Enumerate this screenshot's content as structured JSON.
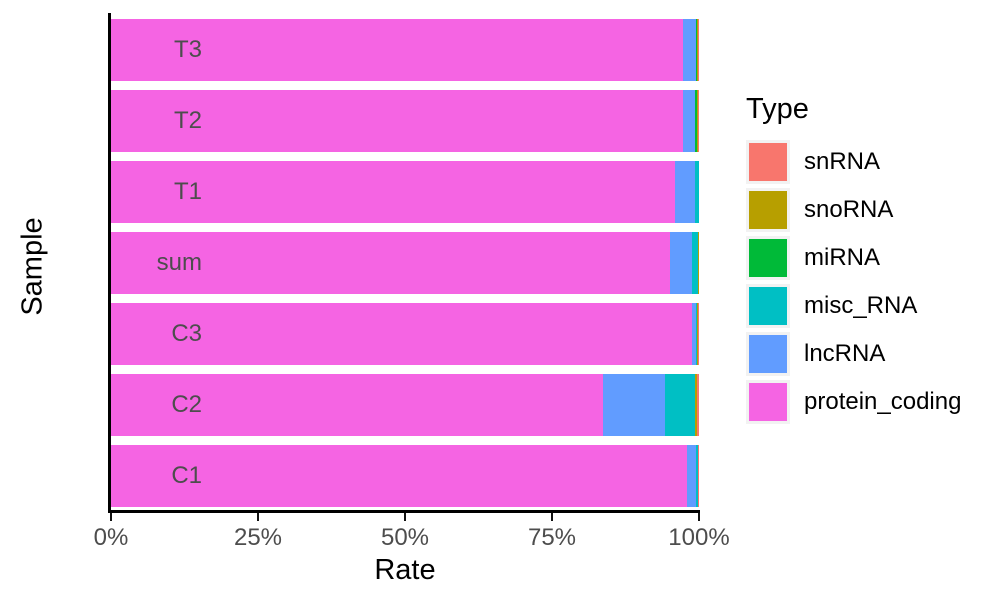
{
  "chart_data": {
    "type": "bar",
    "orientation": "horizontal",
    "stacked": true,
    "title": "",
    "xlabel": "Rate",
    "ylabel": "Sample",
    "x_ticks": [
      {
        "label": "0%",
        "value": 0
      },
      {
        "label": "25%",
        "value": 25
      },
      {
        "label": "50%",
        "value": 50
      },
      {
        "label": "75%",
        "value": 75
      },
      {
        "label": "100%",
        "value": 100
      }
    ],
    "xlim": [
      0,
      100
    ],
    "grid": false,
    "stack_order": [
      "protein_coding",
      "lncRNA",
      "misc_RNA",
      "miRNA",
      "snoRNA",
      "snRNA"
    ],
    "palette": {
      "snRNA": "#F8766D",
      "snoRNA": "#B79F00",
      "miRNA": "#00BA38",
      "misc_RNA": "#00BFC4",
      "lncRNA": "#619CFF",
      "protein_coding": "#F564E3"
    },
    "rows": [
      {
        "label": "T3",
        "segments": {
          "protein_coding": 97.2,
          "lncRNA": 2.3,
          "misc_RNA": 0.0,
          "miRNA": 0.2,
          "snoRNA": 0.2,
          "snRNA": 0.1
        }
      },
      {
        "label": "T2",
        "segments": {
          "protein_coding": 97.3,
          "lncRNA": 2.1,
          "misc_RNA": 0.0,
          "miRNA": 0.3,
          "snoRNA": 0.2,
          "snRNA": 0.1
        }
      },
      {
        "label": "T1",
        "segments": {
          "protein_coding": 95.9,
          "lncRNA": 3.4,
          "misc_RNA": 0.7,
          "miRNA": 0.0,
          "snoRNA": 0.0,
          "snRNA": 0.0
        }
      },
      {
        "label": "sum",
        "segments": {
          "protein_coding": 95.1,
          "lncRNA": 3.7,
          "misc_RNA": 1.1,
          "miRNA": 0.0,
          "snoRNA": 0.1,
          "snRNA": 0.0
        }
      },
      {
        "label": "C3",
        "segments": {
          "protein_coding": 98.8,
          "lncRNA": 0.7,
          "misc_RNA": 0.1,
          "miRNA": 0.0,
          "snoRNA": 0.3,
          "snRNA": 0.1
        }
      },
      {
        "label": "C2",
        "segments": {
          "protein_coding": 83.7,
          "lncRNA": 10.6,
          "misc_RNA": 5.0,
          "miRNA": 0.0,
          "snoRNA": 0.4,
          "snRNA": 0.3
        }
      },
      {
        "label": "C1",
        "segments": {
          "protein_coding": 98.0,
          "lncRNA": 1.5,
          "misc_RNA": 0.3,
          "miRNA": 0.0,
          "snoRNA": 0.1,
          "snRNA": 0.1
        }
      }
    ],
    "legend": {
      "title": "Type",
      "position": "right",
      "entries": [
        {
          "label": "snRNA",
          "color": "#F8766D"
        },
        {
          "label": "snoRNA",
          "color": "#B79F00"
        },
        {
          "label": "miRNA",
          "color": "#00BA38"
        },
        {
          "label": "misc_RNA",
          "color": "#00BFC4"
        },
        {
          "label": "lncRNA",
          "color": "#619CFF"
        },
        {
          "label": "protein_coding",
          "color": "#F564E3"
        }
      ]
    }
  }
}
